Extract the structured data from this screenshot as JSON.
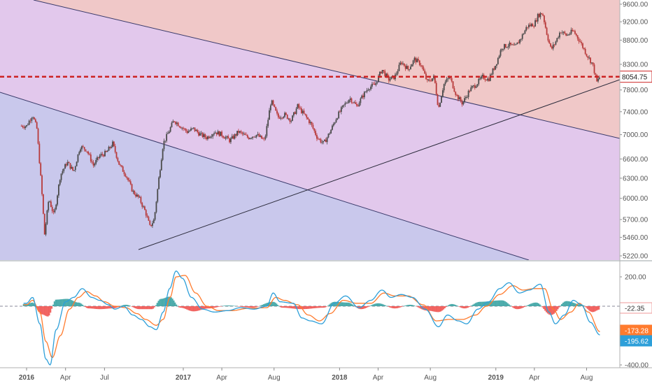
{
  "colors": {
    "zone_top": "#f0c8c8",
    "zone_mid": "#e2c8ec",
    "zone_low": "#c9c8ec",
    "price_line": "#cc2222",
    "candle_up": "#4a4a4a",
    "candle_down": "#b83a3a",
    "macd_line": "#2d9fd9",
    "signal_line": "#ff7b2e",
    "hist_up": "#3aa3a3",
    "hist_down": "#ef5350",
    "trendline": "#3a3a6a",
    "axis_text": "#555555"
  },
  "chart_data": [
    {
      "type": "candlestick",
      "title": "",
      "xlabel": "",
      "ylabel": "",
      "x_ticks": [
        "2016",
        "Apr",
        "Jul",
        "2017",
        "Apr",
        "Aug",
        "2018",
        "Apr",
        "Aug",
        "2019",
        "Apr",
        "Aug"
      ],
      "x_tick_dates": [
        "2016-01-01",
        "2016-04-01",
        "2016-07-01",
        "2017-01-01",
        "2017-04-01",
        "2017-08-01",
        "2018-01-01",
        "2018-04-01",
        "2018-08-01",
        "2019-01-01",
        "2019-04-01",
        "2019-08-01"
      ],
      "y_ticks": [
        "9600.00",
        "9200.00",
        "8800.00",
        "8300.00",
        "7800.00",
        "7400.00",
        "7000.00",
        "6600.00",
        "6300.00",
        "6000.00",
        "5700.00",
        "5460.00",
        "5220.00"
      ],
      "ylim": [
        5200,
        9650
      ],
      "scale": "log",
      "grid": false,
      "last_price_label": "8054.75",
      "horizontal_level": 8054.75,
      "close_points": [
        [
          "2016-01-01",
          7150
        ],
        [
          "2016-01-15",
          7350
        ],
        [
          "2016-01-25",
          7100
        ],
        [
          "2016-02-05",
          6150
        ],
        [
          "2016-02-12",
          5500
        ],
        [
          "2016-02-22",
          6000
        ],
        [
          "2016-03-05",
          5750
        ],
        [
          "2016-03-20",
          6350
        ],
        [
          "2016-04-05",
          6550
        ],
        [
          "2016-04-20",
          6400
        ],
        [
          "2016-05-05",
          6800
        ],
        [
          "2016-05-20",
          6750
        ],
        [
          "2016-06-05",
          6500
        ],
        [
          "2016-06-20",
          6650
        ],
        [
          "2016-07-05",
          6700
        ],
        [
          "2016-07-20",
          6850
        ],
        [
          "2016-08-05",
          6500
        ],
        [
          "2016-08-20",
          6350
        ],
        [
          "2016-09-05",
          6100
        ],
        [
          "2016-09-20",
          6000
        ],
        [
          "2016-10-05",
          5800
        ],
        [
          "2016-10-15",
          5600
        ],
        [
          "2016-10-25",
          5700
        ],
        [
          "2016-11-05",
          6300
        ],
        [
          "2016-11-15",
          6850
        ],
        [
          "2016-11-25",
          7000
        ],
        [
          "2016-12-10",
          7250
        ],
        [
          "2016-12-25",
          7150
        ],
        [
          "2017-01-10",
          7050
        ],
        [
          "2017-01-25",
          7100
        ],
        [
          "2017-02-10",
          7000
        ],
        [
          "2017-02-25",
          6950
        ],
        [
          "2017-03-15",
          7050
        ],
        [
          "2017-04-01",
          7000
        ],
        [
          "2017-04-20",
          6900
        ],
        [
          "2017-05-10",
          7050
        ],
        [
          "2017-06-01",
          6950
        ],
        [
          "2017-06-20",
          7000
        ],
        [
          "2017-07-10",
          6900
        ],
        [
          "2017-07-25",
          7600
        ],
        [
          "2017-08-10",
          7300
        ],
        [
          "2017-08-25",
          7350
        ],
        [
          "2017-09-10",
          7250
        ],
        [
          "2017-09-25",
          7500
        ],
        [
          "2017-10-10",
          7350
        ],
        [
          "2017-10-25",
          7200
        ],
        [
          "2017-11-10",
          6950
        ],
        [
          "2017-11-25",
          6850
        ],
        [
          "2017-12-10",
          7050
        ],
        [
          "2017-12-25",
          7300
        ],
        [
          "2018-01-10",
          7500
        ],
        [
          "2018-01-25",
          7650
        ],
        [
          "2018-02-10",
          7500
        ],
        [
          "2018-02-25",
          7700
        ],
        [
          "2018-03-10",
          7850
        ],
        [
          "2018-03-25",
          7900
        ],
        [
          "2018-04-10",
          8200
        ],
        [
          "2018-04-25",
          8000
        ],
        [
          "2018-05-10",
          8050
        ],
        [
          "2018-05-25",
          8350
        ],
        [
          "2018-06-10",
          8200
        ],
        [
          "2018-06-25",
          8400
        ],
        [
          "2018-07-10",
          8300
        ],
        [
          "2018-07-25",
          7950
        ],
        [
          "2018-08-10",
          8050
        ],
        [
          "2018-08-20",
          7450
        ],
        [
          "2018-09-01",
          7900
        ],
        [
          "2018-09-15",
          8050
        ],
        [
          "2018-10-01",
          7700
        ],
        [
          "2018-10-15",
          7550
        ],
        [
          "2018-11-01",
          7800
        ],
        [
          "2018-11-15",
          7900
        ],
        [
          "2018-12-01",
          8050
        ],
        [
          "2018-12-15",
          8000
        ],
        [
          "2019-01-01",
          8300
        ],
        [
          "2019-01-15",
          8650
        ],
        [
          "2019-02-01",
          8700
        ],
        [
          "2019-02-15",
          8650
        ],
        [
          "2019-03-01",
          8850
        ],
        [
          "2019-03-15",
          9100
        ],
        [
          "2019-04-01",
          9150
        ],
        [
          "2019-04-10",
          9350
        ],
        [
          "2019-04-20",
          9400
        ],
        [
          "2019-05-01",
          8900
        ],
        [
          "2019-05-10",
          8600
        ],
        [
          "2019-05-20",
          8750
        ],
        [
          "2019-06-01",
          9000
        ],
        [
          "2019-06-15",
          8900
        ],
        [
          "2019-07-01",
          9000
        ],
        [
          "2019-07-15",
          8800
        ],
        [
          "2019-08-01",
          8500
        ],
        [
          "2019-08-15",
          8300
        ],
        [
          "2019-08-25",
          7950
        ],
        [
          "2019-09-01",
          8054.75
        ]
      ]
    },
    {
      "type": "macd",
      "title": "",
      "y_ticks": [
        "200.00",
        "-400.00"
      ],
      "ylim": [
        -430,
        290
      ],
      "zero_level": 0,
      "value_labels": [
        {
          "name": "histogram",
          "value": "-22.35"
        },
        {
          "name": "signal",
          "value": "-173.28"
        },
        {
          "name": "macd",
          "value": "-195.62"
        }
      ],
      "macd_points": [
        [
          "2016-01-01",
          20
        ],
        [
          "2016-01-15",
          60
        ],
        [
          "2016-02-01",
          -120
        ],
        [
          "2016-02-15",
          -360
        ],
        [
          "2016-02-25",
          -400
        ],
        [
          "2016-03-10",
          -160
        ],
        [
          "2016-04-01",
          30
        ],
        [
          "2016-04-20",
          60
        ],
        [
          "2016-05-10",
          120
        ],
        [
          "2016-06-01",
          60
        ],
        [
          "2016-06-20",
          40
        ],
        [
          "2016-07-10",
          10
        ],
        [
          "2016-07-25",
          -20
        ],
        [
          "2016-08-15",
          0
        ],
        [
          "2016-09-05",
          -60
        ],
        [
          "2016-09-25",
          -90
        ],
        [
          "2016-10-15",
          -140
        ],
        [
          "2016-10-30",
          -160
        ],
        [
          "2016-11-15",
          -40
        ],
        [
          "2016-11-30",
          120
        ],
        [
          "2016-12-15",
          240
        ],
        [
          "2016-12-30",
          190
        ],
        [
          "2017-01-20",
          60
        ],
        [
          "2017-02-15",
          -20
        ],
        [
          "2017-03-15",
          -40
        ],
        [
          "2017-04-15",
          -30
        ],
        [
          "2017-05-15",
          -10
        ],
        [
          "2017-06-15",
          -20
        ],
        [
          "2017-07-15",
          0
        ],
        [
          "2017-07-30",
          90
        ],
        [
          "2017-08-15",
          30
        ],
        [
          "2017-09-15",
          20
        ],
        [
          "2017-10-05",
          -80
        ],
        [
          "2017-10-25",
          -100
        ],
        [
          "2017-11-20",
          -120
        ],
        [
          "2017-12-20",
          20
        ],
        [
          "2018-01-15",
          70
        ],
        [
          "2018-02-15",
          -10
        ],
        [
          "2018-03-15",
          40
        ],
        [
          "2018-04-10",
          110
        ],
        [
          "2018-05-01",
          60
        ],
        [
          "2018-05-25",
          80
        ],
        [
          "2018-06-20",
          60
        ],
        [
          "2018-07-20",
          -20
        ],
        [
          "2018-08-20",
          -140
        ],
        [
          "2018-09-10",
          -60
        ],
        [
          "2018-10-05",
          -100
        ],
        [
          "2018-10-25",
          -120
        ],
        [
          "2018-11-20",
          -20
        ],
        [
          "2018-12-15",
          30
        ],
        [
          "2019-01-10",
          120
        ],
        [
          "2019-02-01",
          160
        ],
        [
          "2019-02-25",
          90
        ],
        [
          "2019-03-20",
          110
        ],
        [
          "2019-04-15",
          150
        ],
        [
          "2019-05-05",
          -40
        ],
        [
          "2019-05-20",
          -120
        ],
        [
          "2019-06-10",
          -60
        ],
        [
          "2019-07-01",
          40
        ],
        [
          "2019-07-20",
          10
        ],
        [
          "2019-08-10",
          -110
        ],
        [
          "2019-09-01",
          -195.62
        ]
      ],
      "signal_points": [
        [
          "2016-01-01",
          10
        ],
        [
          "2016-01-15",
          40
        ],
        [
          "2016-02-01",
          -40
        ],
        [
          "2016-02-15",
          -240
        ],
        [
          "2016-03-01",
          -350
        ],
        [
          "2016-03-20",
          -200
        ],
        [
          "2016-04-10",
          -20
        ],
        [
          "2016-05-01",
          60
        ],
        [
          "2016-05-20",
          100
        ],
        [
          "2016-06-10",
          70
        ],
        [
          "2016-07-01",
          30
        ],
        [
          "2016-07-25",
          0
        ],
        [
          "2016-08-20",
          -10
        ],
        [
          "2016-09-15",
          -50
        ],
        [
          "2016-10-05",
          -90
        ],
        [
          "2016-10-30",
          -130
        ],
        [
          "2016-11-15",
          -90
        ],
        [
          "2016-12-01",
          60
        ],
        [
          "2016-12-15",
          200
        ],
        [
          "2017-01-05",
          210
        ],
        [
          "2017-01-30",
          90
        ],
        [
          "2017-02-25",
          0
        ],
        [
          "2017-03-25",
          -30
        ],
        [
          "2017-04-25",
          -30
        ],
        [
          "2017-06-01",
          -15
        ],
        [
          "2017-07-15",
          -10
        ],
        [
          "2017-08-05",
          60
        ],
        [
          "2017-08-25",
          40
        ],
        [
          "2017-09-25",
          10
        ],
        [
          "2017-10-20",
          -60
        ],
        [
          "2017-11-15",
          -100
        ],
        [
          "2017-12-10",
          -50
        ],
        [
          "2018-01-10",
          40
        ],
        [
          "2018-02-10",
          20
        ],
        [
          "2018-03-15",
          20
        ],
        [
          "2018-04-15",
          90
        ],
        [
          "2018-05-10",
          70
        ],
        [
          "2018-06-10",
          70
        ],
        [
          "2018-07-15",
          10
        ],
        [
          "2018-08-15",
          -100
        ],
        [
          "2018-09-15",
          -90
        ],
        [
          "2018-10-15",
          -90
        ],
        [
          "2018-11-15",
          -60
        ],
        [
          "2018-12-10",
          0
        ],
        [
          "2019-01-10",
          80
        ],
        [
          "2019-02-10",
          140
        ],
        [
          "2019-03-05",
          110
        ],
        [
          "2019-04-01",
          120
        ],
        [
          "2019-04-25",
          120
        ],
        [
          "2019-05-15",
          -20
        ],
        [
          "2019-06-01",
          -90
        ],
        [
          "2019-06-25",
          -40
        ],
        [
          "2019-07-15",
          20
        ],
        [
          "2019-08-05",
          -40
        ],
        [
          "2019-09-01",
          -173.28
        ]
      ],
      "histogram_points": [
        [
          "2016-01-01",
          15
        ],
        [
          "2016-01-15",
          25
        ],
        [
          "2016-02-05",
          -55
        ],
        [
          "2016-02-20",
          -70
        ],
        [
          "2016-03-10",
          45
        ],
        [
          "2016-04-05",
          50
        ],
        [
          "2016-05-01",
          25
        ],
        [
          "2016-05-25",
          -15
        ],
        [
          "2016-06-20",
          -20
        ],
        [
          "2016-07-20",
          -15
        ],
        [
          "2016-08-20",
          10
        ],
        [
          "2016-09-20",
          -20
        ],
        [
          "2016-10-20",
          -20
        ],
        [
          "2016-11-10",
          50
        ],
        [
          "2016-11-30",
          65
        ],
        [
          "2016-12-25",
          -10
        ],
        [
          "2017-01-25",
          -35
        ],
        [
          "2017-03-01",
          -15
        ],
        [
          "2017-04-15",
          5
        ],
        [
          "2017-06-10",
          -10
        ],
        [
          "2017-07-30",
          30
        ],
        [
          "2017-08-20",
          -10
        ],
        [
          "2017-10-05",
          -20
        ],
        [
          "2017-11-25",
          -10
        ],
        [
          "2017-12-20",
          30
        ],
        [
          "2018-01-20",
          25
        ],
        [
          "2018-02-20",
          -20
        ],
        [
          "2018-04-01",
          20
        ],
        [
          "2018-05-10",
          -15
        ],
        [
          "2018-06-15",
          10
        ],
        [
          "2018-07-25",
          -30
        ],
        [
          "2018-08-20",
          -40
        ],
        [
          "2018-09-20",
          15
        ],
        [
          "2018-10-20",
          -15
        ],
        [
          "2018-11-25",
          30
        ],
        [
          "2019-01-15",
          40
        ],
        [
          "2019-02-20",
          -20
        ],
        [
          "2019-04-05",
          25
        ],
        [
          "2019-05-10",
          -60
        ],
        [
          "2019-06-15",
          35
        ],
        [
          "2019-07-20",
          10
        ],
        [
          "2019-08-15",
          -40
        ],
        [
          "2019-09-01",
          -22.35
        ]
      ]
    }
  ]
}
